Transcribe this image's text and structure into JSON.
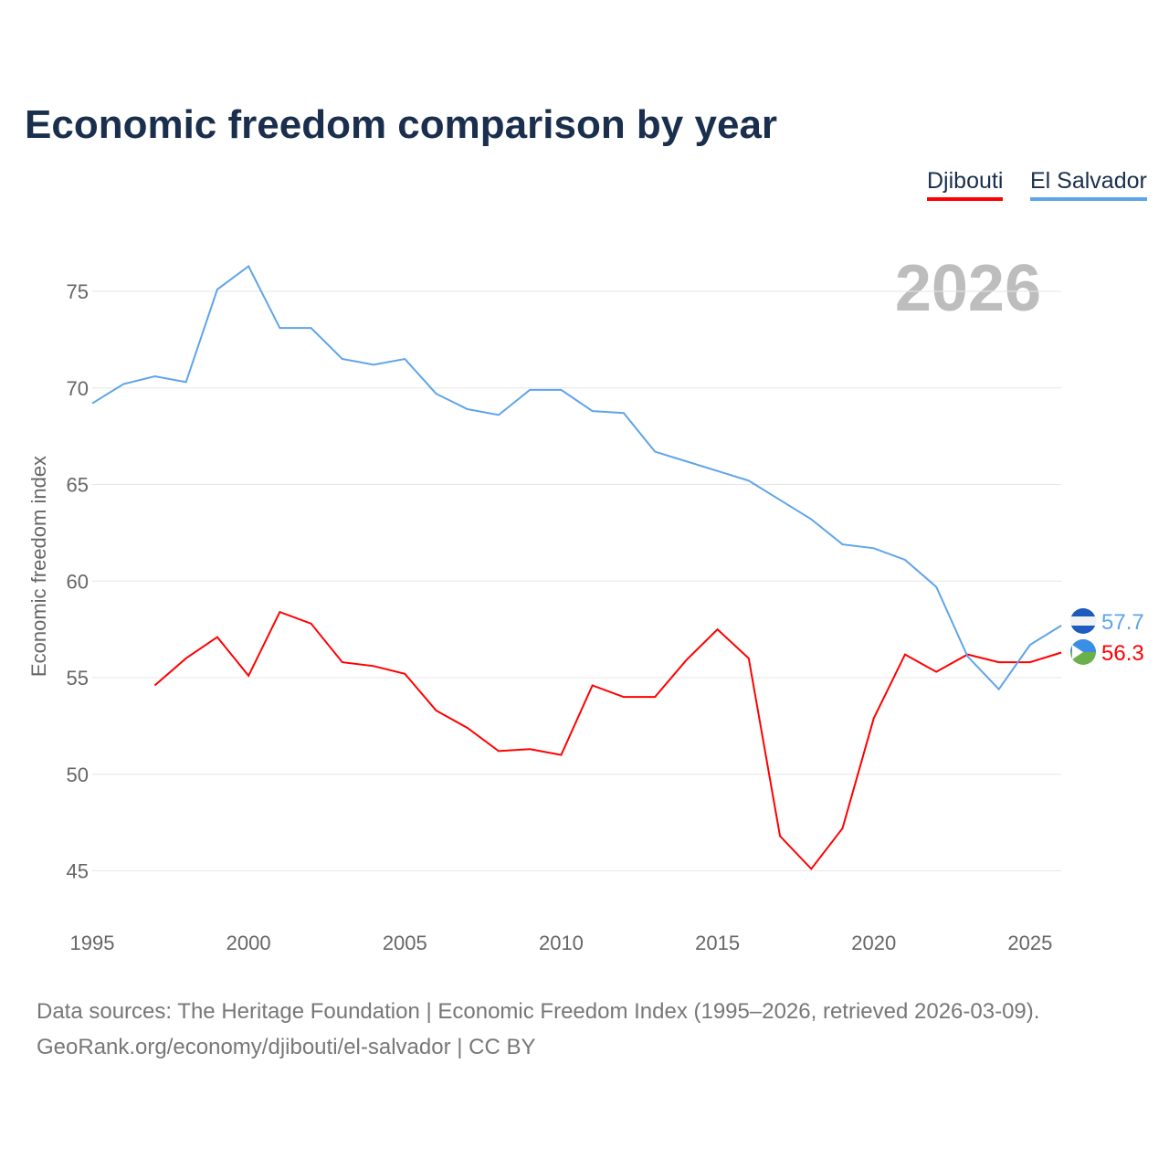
{
  "title": "Economic freedom comparison by year",
  "source_line1": "Data sources: The Heritage Foundation | Economic Freedom Index (1995–2026, retrieved 2026-03-09).",
  "source_line2": "GeoRank.org/economy/djibouti/el-salvador | CC BY",
  "chart_data": {
    "type": "line",
    "title": "Economic freedom comparison by year",
    "xlabel": "",
    "ylabel": "Economic freedom index",
    "xlim": [
      1995,
      2026
    ],
    "ylim": [
      43,
      78
    ],
    "xticks": [
      1995,
      2000,
      2005,
      2010,
      2015,
      2020,
      2025
    ],
    "yticks": [
      45,
      50,
      55,
      60,
      65,
      70,
      75
    ],
    "year_label": "2026",
    "legend_placement": "top-right",
    "series": [
      {
        "name": "Djibouti",
        "color": "#ff0000",
        "end_label": "56.3",
        "x": [
          1997,
          1998,
          1999,
          2000,
          2001,
          2002,
          2003,
          2004,
          2005,
          2006,
          2007,
          2008,
          2009,
          2010,
          2011,
          2012,
          2013,
          2014,
          2015,
          2016,
          2017,
          2018,
          2019,
          2020,
          2021,
          2022,
          2023,
          2024,
          2025,
          2026
        ],
        "values": [
          54.6,
          56.0,
          57.1,
          55.1,
          58.4,
          57.8,
          55.8,
          55.6,
          55.2,
          53.3,
          52.4,
          51.2,
          51.3,
          51.0,
          54.6,
          54.0,
          54.0,
          55.9,
          57.5,
          56.0,
          46.8,
          45.1,
          47.2,
          52.9,
          56.2,
          55.3,
          56.2,
          55.8,
          55.8,
          56.3
        ]
      },
      {
        "name": "El Salvador",
        "color": "#5ea4ea",
        "end_label": "57.7",
        "x": [
          1995,
          1996,
          1997,
          1998,
          1999,
          2000,
          2001,
          2002,
          2003,
          2004,
          2005,
          2006,
          2007,
          2008,
          2009,
          2010,
          2011,
          2012,
          2013,
          2014,
          2015,
          2016,
          2017,
          2018,
          2019,
          2020,
          2021,
          2022,
          2023,
          2024,
          2025,
          2026
        ],
        "values": [
          69.2,
          70.2,
          70.6,
          70.3,
          75.1,
          76.3,
          73.1,
          73.1,
          71.5,
          71.2,
          71.5,
          69.7,
          68.9,
          68.6,
          69.9,
          69.9,
          68.8,
          68.7,
          66.7,
          66.2,
          65.7,
          65.2,
          64.2,
          63.2,
          61.9,
          61.7,
          61.1,
          59.7,
          56.1,
          54.4,
          56.7,
          57.7
        ]
      }
    ]
  }
}
